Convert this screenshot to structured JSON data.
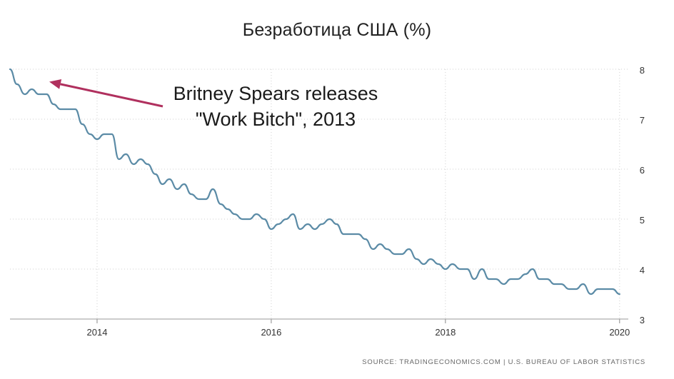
{
  "chart_data": {
    "type": "line",
    "title": "Безработица США (%)",
    "xlabel": "",
    "ylabel": "",
    "x_ticks": [
      "2014",
      "2016",
      "2018",
      "2020"
    ],
    "y_ticks": [
      "3",
      "4",
      "5",
      "6",
      "7",
      "8"
    ],
    "xlim": [
      2013.0,
      2020.1
    ],
    "ylim": [
      3,
      8
    ],
    "y_axis_position": "right",
    "grid": true,
    "series": [
      {
        "color": "#5b8ba6",
        "x": [
          2013.0,
          2013.08,
          2013.17,
          2013.25,
          2013.33,
          2013.42,
          2013.5,
          2013.58,
          2013.67,
          2013.75,
          2013.83,
          2013.92,
          2014.0,
          2014.08,
          2014.17,
          2014.25,
          2014.33,
          2014.42,
          2014.5,
          2014.58,
          2014.67,
          2014.75,
          2014.83,
          2014.92,
          2015.0,
          2015.08,
          2015.17,
          2015.25,
          2015.33,
          2015.42,
          2015.5,
          2015.58,
          2015.67,
          2015.75,
          2015.83,
          2015.92,
          2016.0,
          2016.08,
          2016.17,
          2016.25,
          2016.33,
          2016.42,
          2016.5,
          2016.58,
          2016.67,
          2016.75,
          2016.83,
          2016.92,
          2017.0,
          2017.08,
          2017.17,
          2017.25,
          2017.33,
          2017.42,
          2017.5,
          2017.58,
          2017.67,
          2017.75,
          2017.83,
          2017.92,
          2018.0,
          2018.08,
          2018.17,
          2018.25,
          2018.33,
          2018.42,
          2018.5,
          2018.58,
          2018.67,
          2018.75,
          2018.83,
          2018.92,
          2019.0,
          2019.08,
          2019.17,
          2019.25,
          2019.33,
          2019.42,
          2019.5,
          2019.58,
          2019.67,
          2019.75,
          2019.83,
          2019.92,
          2020.0
        ],
        "values": [
          8.0,
          7.7,
          7.5,
          7.6,
          7.5,
          7.5,
          7.3,
          7.2,
          7.2,
          7.2,
          6.9,
          6.7,
          6.6,
          6.7,
          6.7,
          6.2,
          6.3,
          6.1,
          6.2,
          6.1,
          5.9,
          5.7,
          5.8,
          5.6,
          5.7,
          5.5,
          5.4,
          5.4,
          5.6,
          5.3,
          5.2,
          5.1,
          5.0,
          5.0,
          5.1,
          5.0,
          4.8,
          4.9,
          5.0,
          5.1,
          4.8,
          4.9,
          4.8,
          4.9,
          5.0,
          4.9,
          4.7,
          4.7,
          4.7,
          4.6,
          4.4,
          4.5,
          4.4,
          4.3,
          4.3,
          4.4,
          4.2,
          4.1,
          4.2,
          4.1,
          4.0,
          4.1,
          4.0,
          4.0,
          3.8,
          4.0,
          3.8,
          3.8,
          3.7,
          3.8,
          3.8,
          3.9,
          4.0,
          3.8,
          3.8,
          3.7,
          3.7,
          3.6,
          3.6,
          3.7,
          3.5,
          3.6,
          3.6,
          3.6,
          3.5
        ]
      }
    ],
    "annotations": [
      {
        "lines": [
          "Britney Spears releases",
          "\"Work Bitch\", 2013"
        ],
        "arrow_to_x": 2013.5,
        "arrow_to_y": 7.75,
        "arrow_color": "#b0305e"
      }
    ],
    "source": "SOURCE: TRADINGECONOMICS.COM | U.S. BUREAU OF LABOR STATISTICS"
  }
}
